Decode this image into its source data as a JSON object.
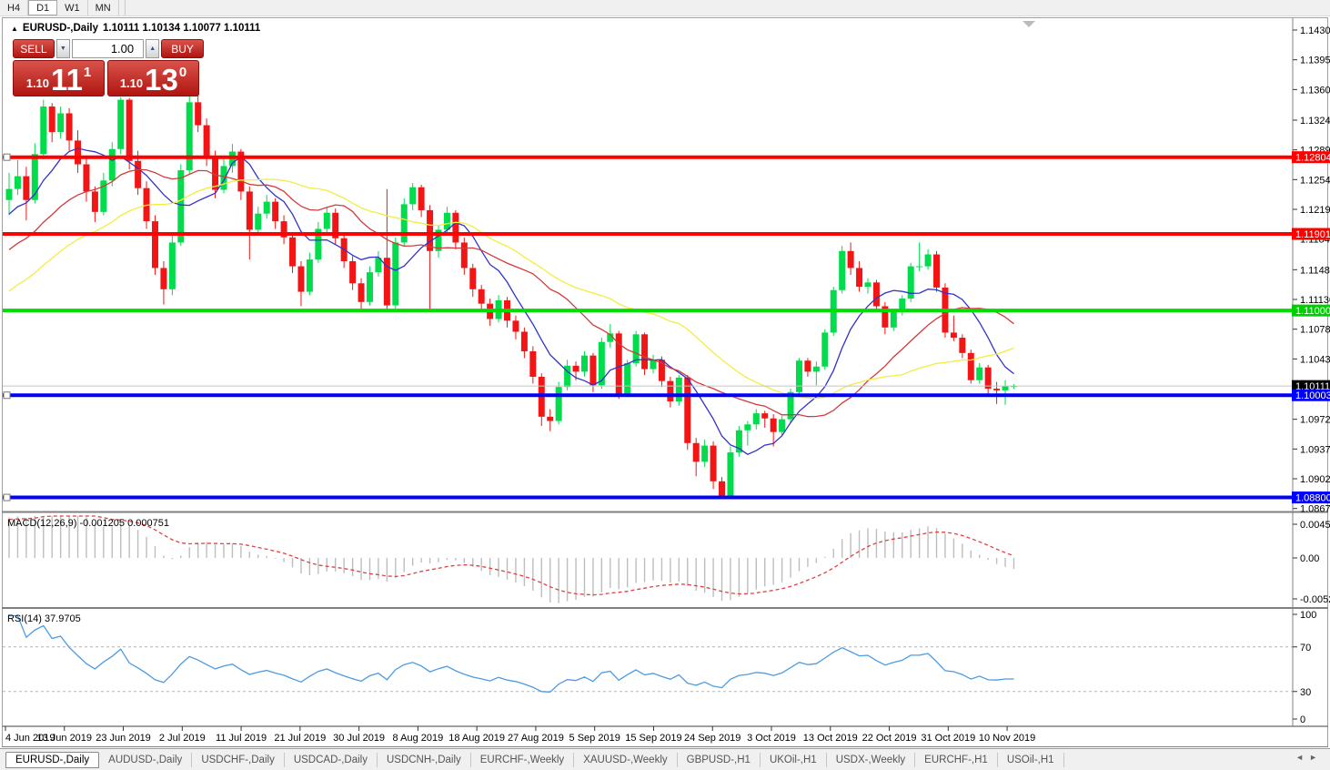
{
  "toolbar": {
    "timeframes": [
      "H4",
      "D1",
      "W1",
      "MN"
    ],
    "active": "D1"
  },
  "title": {
    "arrow": "▲",
    "symbol": "EURUSD-,Daily",
    "ohlc": "1.10111 1.10134 1.10077 1.10111"
  },
  "trade_panel": {
    "sell_label": "SELL",
    "buy_label": "BUY",
    "volume": "1.00",
    "sell_small": "1.10",
    "sell_big": "11",
    "sell_sup": "1",
    "buy_small": "1.10",
    "buy_big": "13",
    "buy_sup": "0"
  },
  "price_axis": {
    "ticks": [
      "1.14300",
      "1.13950",
      "1.13600",
      "1.13240",
      "1.12890",
      "1.12540",
      "1.12190",
      "1.11840",
      "1.11480",
      "1.11130",
      "1.10780",
      "1.10430",
      "1.09720",
      "1.09370",
      "1.09020",
      "1.08670"
    ],
    "badges": [
      {
        "text": "1.12804",
        "price": 1.12804,
        "color": "#FF0000"
      },
      {
        "text": "1.11901",
        "price": 1.11901,
        "color": "#FF0000"
      },
      {
        "text": "1.11000",
        "price": 1.11,
        "color": "#00CE00"
      },
      {
        "text": "1.10111",
        "price": 1.10111,
        "color": "#000000"
      },
      {
        "text": "1.10003",
        "price": 1.10003,
        "color": "#0000FF"
      },
      {
        "text": "1.08800",
        "price": 1.088,
        "color": "#0000FF"
      }
    ]
  },
  "hlines": [
    {
      "price": 1.12804,
      "color": "#FF0000",
      "w": 4,
      "handle": true
    },
    {
      "price": 1.11901,
      "color": "#FF0000",
      "w": 4,
      "handle": false
    },
    {
      "price": 1.11,
      "color": "#00DD00",
      "w": 4,
      "handle": false
    },
    {
      "price": 1.10111,
      "color": "#C4C4C4",
      "w": 1,
      "handle": false
    },
    {
      "price": 1.10003,
      "color": "#0000FF",
      "w": 4,
      "handle": true
    },
    {
      "price": 1.088,
      "color": "#0000FF",
      "w": 4,
      "handle": true
    }
  ],
  "chart_data": {
    "type": "candlestick",
    "symbol": "EURUSD-",
    "timeframe": "Daily",
    "ylim": [
      1.08656,
      1.14375
    ],
    "x_labels": [
      "4 Jun 2019",
      "13 Jun 2019",
      "23 Jun 2019",
      "2 Jul 2019",
      "11 Jul 2019",
      "21 Jul 2019",
      "30 Jul 2019",
      "8 Aug 2019",
      "18 Aug 2019",
      "27 Aug 2019",
      "5 Sep 2019",
      "15 Sep 2019",
      "24 Sep 2019",
      "3 Oct 2019",
      "13 Oct 2019",
      "22 Oct 2019",
      "31 Oct 2019",
      "10 Nov 2019"
    ],
    "candles": [
      [
        1.123,
        1.1262,
        1.1212,
        1.1243
      ],
      [
        1.1243,
        1.1277,
        1.1236,
        1.1258
      ],
      [
        1.1258,
        1.1269,
        1.1206,
        1.123
      ],
      [
        1.123,
        1.1297,
        1.1226,
        1.1284
      ],
      [
        1.1284,
        1.1348,
        1.1278,
        1.134
      ],
      [
        1.134,
        1.1344,
        1.1298,
        1.131
      ],
      [
        1.131,
        1.134,
        1.1302,
        1.1332
      ],
      [
        1.1332,
        1.1338,
        1.1288,
        1.13
      ],
      [
        1.13,
        1.1312,
        1.1262,
        1.1272
      ],
      [
        1.1272,
        1.128,
        1.1228,
        1.124
      ],
      [
        1.124,
        1.1246,
        1.1204,
        1.1216
      ],
      [
        1.1216,
        1.1262,
        1.1212,
        1.1253
      ],
      [
        1.1253,
        1.1298,
        1.1246,
        1.129
      ],
      [
        1.129,
        1.1351,
        1.1284,
        1.1348
      ],
      [
        1.1348,
        1.135,
        1.1266,
        1.1276
      ],
      [
        1.1276,
        1.1288,
        1.1236,
        1.1244
      ],
      [
        1.1244,
        1.1252,
        1.1196,
        1.1205
      ],
      [
        1.1205,
        1.1212,
        1.1142,
        1.115
      ],
      [
        1.115,
        1.1158,
        1.1107,
        1.1125
      ],
      [
        1.1125,
        1.1188,
        1.1118,
        1.118
      ],
      [
        1.118,
        1.1272,
        1.1176,
        1.1265
      ],
      [
        1.1265,
        1.139,
        1.126,
        1.1345
      ],
      [
        1.1345,
        1.136,
        1.131,
        1.1318
      ],
      [
        1.1318,
        1.1326,
        1.127,
        1.128
      ],
      [
        1.128,
        1.1288,
        1.1232,
        1.1242
      ],
      [
        1.1242,
        1.1278,
        1.1238,
        1.127
      ],
      [
        1.127,
        1.1296,
        1.1262,
        1.1287
      ],
      [
        1.1287,
        1.129,
        1.123,
        1.124
      ],
      [
        1.124,
        1.1246,
        1.116,
        1.1195
      ],
      [
        1.1195,
        1.1222,
        1.119,
        1.1214
      ],
      [
        1.1214,
        1.1236,
        1.1208,
        1.1228
      ],
      [
        1.1228,
        1.1232,
        1.1196,
        1.1205
      ],
      [
        1.1205,
        1.1212,
        1.1178,
        1.1186
      ],
      [
        1.1186,
        1.1192,
        1.1144,
        1.1152
      ],
      [
        1.1152,
        1.1158,
        1.1105,
        1.1122
      ],
      [
        1.1122,
        1.1168,
        1.1118,
        1.116
      ],
      [
        1.116,
        1.1204,
        1.1156,
        1.1196
      ],
      [
        1.1196,
        1.1222,
        1.1192,
        1.1215
      ],
      [
        1.1215,
        1.122,
        1.1178,
        1.1185
      ],
      [
        1.1185,
        1.1192,
        1.115,
        1.1158
      ],
      [
        1.1158,
        1.1164,
        1.1124,
        1.1132
      ],
      [
        1.1132,
        1.1138,
        1.1102,
        1.111
      ],
      [
        1.111,
        1.1152,
        1.1106,
        1.1145
      ],
      [
        1.1145,
        1.117,
        1.114,
        1.1162
      ],
      [
        1.1162,
        1.1243,
        1.1098,
        1.1106
      ],
      [
        1.1106,
        1.1186,
        1.1102,
        1.118
      ],
      [
        1.118,
        1.1232,
        1.1176,
        1.1225
      ],
      [
        1.1225,
        1.125,
        1.1218,
        1.1245
      ],
      [
        1.1245,
        1.1248,
        1.121,
        1.1218
      ],
      [
        1.1218,
        1.1224,
        1.1098,
        1.117
      ],
      [
        1.117,
        1.12,
        1.1162,
        1.1195
      ],
      [
        1.1195,
        1.1222,
        1.119,
        1.1215
      ],
      [
        1.1215,
        1.1218,
        1.1172,
        1.118
      ],
      [
        1.118,
        1.1186,
        1.1142,
        1.115
      ],
      [
        1.115,
        1.1155,
        1.1116,
        1.1125
      ],
      [
        1.1125,
        1.113,
        1.11,
        1.1108
      ],
      [
        1.1108,
        1.1114,
        1.1082,
        1.109
      ],
      [
        1.109,
        1.1118,
        1.1086,
        1.1112
      ],
      [
        1.1112,
        1.1116,
        1.108,
        1.1088
      ],
      [
        1.1088,
        1.1094,
        1.1066,
        1.1075
      ],
      [
        1.1075,
        1.108,
        1.1044,
        1.1052
      ],
      [
        1.1052,
        1.1058,
        1.1014,
        1.1022
      ],
      [
        1.1022,
        1.1026,
        1.0964,
        1.0975
      ],
      [
        1.0975,
        1.0984,
        1.0958,
        1.097
      ],
      [
        1.097,
        1.1016,
        1.0966,
        1.101
      ],
      [
        1.101,
        1.1042,
        1.1006,
        1.1035
      ],
      [
        1.1035,
        1.104,
        1.1018,
        1.1028
      ],
      [
        1.1028,
        1.1052,
        1.1022,
        1.1047
      ],
      [
        1.1047,
        1.105,
        1.1004,
        1.1012
      ],
      [
        1.1012,
        1.1068,
        1.1008,
        1.1063
      ],
      [
        1.1063,
        1.1084,
        1.1056,
        1.1073
      ],
      [
        1.1073,
        1.1076,
        1.0996,
        1.1002
      ],
      [
        1.1002,
        1.1042,
        1.0998,
        1.1038
      ],
      [
        1.1038,
        1.1076,
        1.1034,
        1.1072
      ],
      [
        1.1072,
        1.1074,
        1.1024,
        1.1031
      ],
      [
        1.1031,
        1.1048,
        1.1026,
        1.1042
      ],
      [
        1.1042,
        1.1046,
        1.101,
        1.1017
      ],
      [
        1.1017,
        1.1022,
        1.0986,
        1.0993
      ],
      [
        1.0993,
        1.1024,
        1.0988,
        1.1021
      ],
      [
        1.1021,
        1.1024,
        1.0936,
        1.0944
      ],
      [
        1.0944,
        1.095,
        1.0905,
        1.0922
      ],
      [
        1.0922,
        1.0948,
        1.0916,
        1.0941
      ],
      [
        1.0941,
        1.0946,
        1.089,
        1.0899
      ],
      [
        1.0899,
        1.0904,
        1.0879,
        1.0882
      ],
      [
        1.0882,
        1.094,
        1.0878,
        1.0933
      ],
      [
        1.0933,
        1.0964,
        1.0928,
        1.0959
      ],
      [
        1.0959,
        1.097,
        1.0941,
        1.0966
      ],
      [
        1.0966,
        1.0984,
        1.096,
        1.0979
      ],
      [
        1.0979,
        1.0982,
        1.0962,
        1.0973
      ],
      [
        1.0973,
        1.0978,
        1.094,
        1.0957
      ],
      [
        1.0957,
        1.0976,
        1.0952,
        1.0972
      ],
      [
        1.0972,
        1.1008,
        1.0968,
        1.1004
      ],
      [
        1.1004,
        1.1044,
        1.1,
        1.1041
      ],
      [
        1.1041,
        1.1044,
        1.1022,
        1.1028
      ],
      [
        1.1028,
        1.104,
        1.1012,
        1.1034
      ],
      [
        1.1034,
        1.1078,
        1.103,
        1.1074
      ],
      [
        1.1074,
        1.1128,
        1.107,
        1.1124
      ],
      [
        1.1124,
        1.1176,
        1.112,
        1.117
      ],
      [
        1.117,
        1.118,
        1.1142,
        1.115
      ],
      [
        1.115,
        1.1158,
        1.1122,
        1.1128
      ],
      [
        1.1128,
        1.1138,
        1.112,
        1.1133
      ],
      [
        1.1133,
        1.1136,
        1.1098,
        1.1105
      ],
      [
        1.1105,
        1.111,
        1.1072,
        1.108
      ],
      [
        1.108,
        1.1102,
        1.1076,
        1.1099
      ],
      [
        1.1099,
        1.1118,
        1.1094,
        1.1114
      ],
      [
        1.1114,
        1.1156,
        1.111,
        1.1152
      ],
      [
        1.1152,
        1.118,
        1.1146,
        1.1152
      ],
      [
        1.1152,
        1.1172,
        1.1148,
        1.1166
      ],
      [
        1.1166,
        1.117,
        1.1122,
        1.1127
      ],
      [
        1.1127,
        1.1132,
        1.1068,
        1.1074
      ],
      [
        1.1074,
        1.1094,
        1.1064,
        1.1068
      ],
      [
        1.1068,
        1.1072,
        1.1044,
        1.105
      ],
      [
        1.105,
        1.1054,
        1.1014,
        1.1018
      ],
      [
        1.1018,
        1.1038,
        1.1014,
        1.1033
      ],
      [
        1.1033,
        1.1036,
        1.1002,
        1.1008
      ],
      [
        1.1008,
        1.1016,
        1.099,
        1.1006
      ],
      [
        1.1006,
        1.1018,
        1.0989,
        1.1011
      ],
      [
        1.10111,
        1.10134,
        1.10077,
        1.10111
      ]
    ],
    "warmup": {
      "start": 1.096,
      "end": 1.123,
      "count": 40
    },
    "moving_averages": [
      {
        "period": 8,
        "color": "#3232CC"
      },
      {
        "period": 20,
        "color": "#D23B3B"
      },
      {
        "period": 34,
        "color": "#F2EE3E"
      }
    ],
    "indicators": [
      {
        "name": "MACD",
        "params": "12,26,9",
        "label": "MACD(12,26,9) -0.001205 0.000751",
        "axis": [
          "0.004536",
          "0.00",
          "-0.005205"
        ],
        "current_macd": -0.001205,
        "current_signal": 0.000751
      },
      {
        "name": "RSI",
        "params": "14",
        "label": "RSI(14) 37.9705",
        "axis": [
          "100",
          "70",
          "30",
          "0"
        ],
        "current": 37.9705,
        "levels": [
          30,
          70
        ]
      }
    ]
  },
  "tabs": {
    "items": [
      "EURUSD-,Daily",
      "AUDUSD-,Daily",
      "USDCHF-,Daily",
      "USDCAD-,Daily",
      "USDCNH-,Daily",
      "EURCHF-,Weekly",
      "XAUUSD-,Weekly",
      "GBPUSD-,H1",
      "UKOil-,H1",
      "USDX-,Weekly",
      "EURCHF-,H1",
      "USOil-,H1"
    ],
    "active": "EURUSD-,Daily",
    "scroll_left": "◄",
    "scroll_right": "►"
  },
  "colors": {
    "bull": "#00DC4B",
    "bear": "#F21515",
    "macd_bar": "#BDBDBD",
    "macd_signal": "#E04040",
    "rsi_line": "#4D9BE0",
    "level_dash": "#B4B4B4",
    "panel_red_top": "#D9534B",
    "panel_red_bottom": "#B01510"
  }
}
